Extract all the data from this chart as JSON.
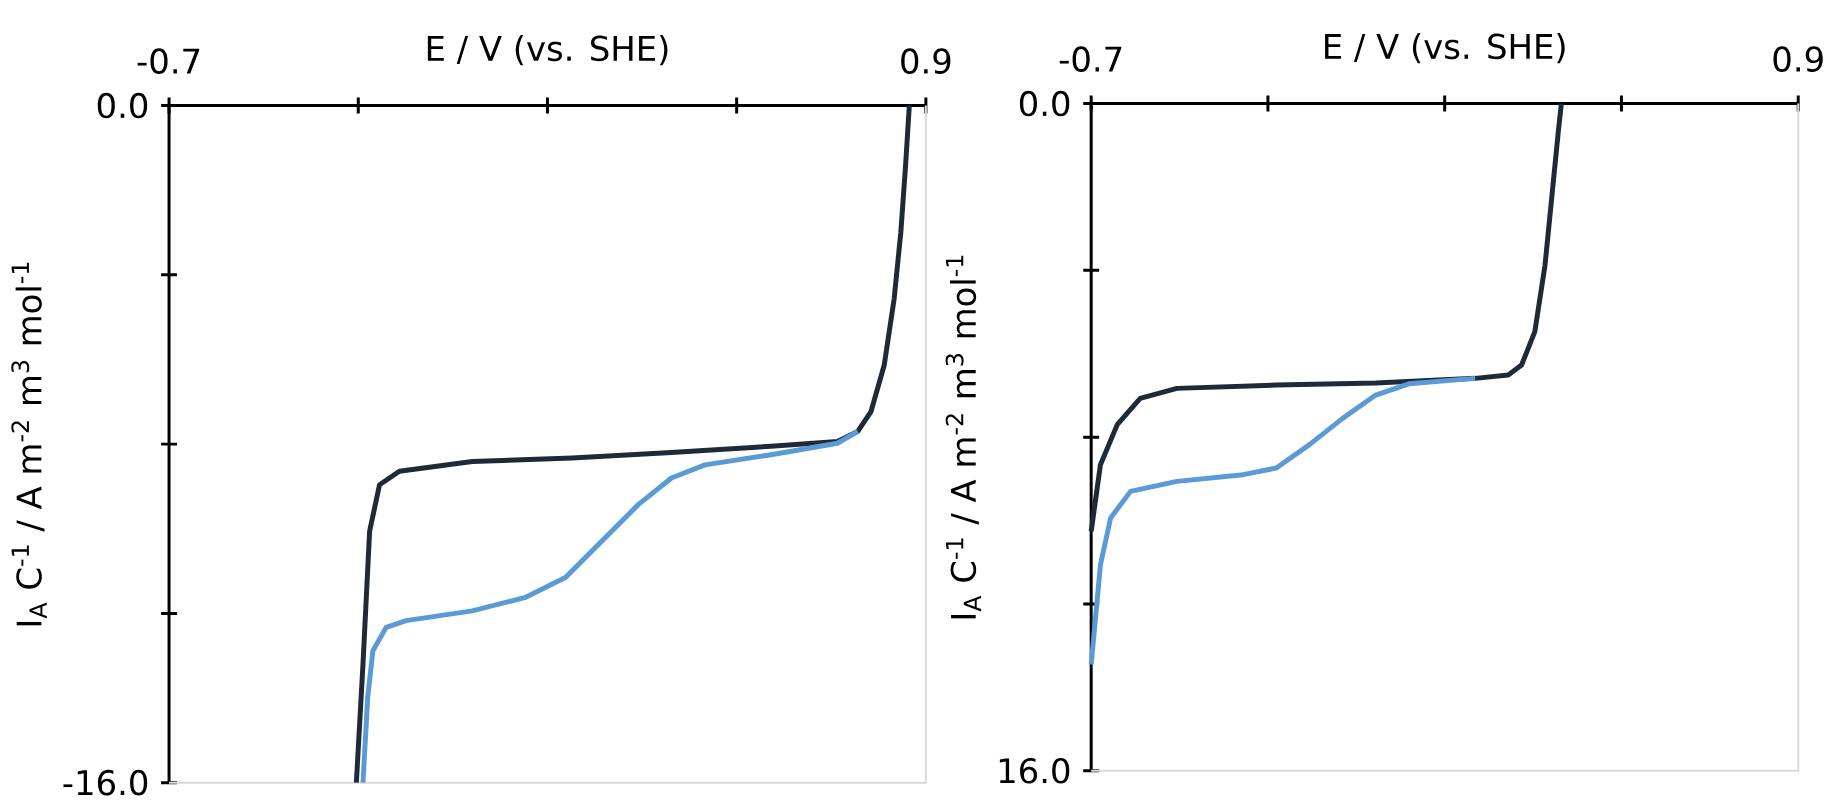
{
  "chart_data": [
    {
      "type": "line",
      "xlabel": "E / V (vs. SHE)",
      "ylabel": "I$_{A}$ C$^{-1}$ / A m$^{-2}$ m$^{3}$ mol$^{-1}$",
      "xlim": [
        -0.7,
        0.9
      ],
      "ylim": [
        -16,
        0
      ],
      "xticks": [
        {
          "value": -0.7,
          "label": "-0.7"
        },
        {
          "value": -0.3,
          "label": null
        },
        {
          "value": 0.1,
          "label": null
        },
        {
          "value": 0.5,
          "label": null
        },
        {
          "value": 0.9,
          "label": "0.9"
        }
      ],
      "yticks": [
        {
          "value": 0,
          "label": "0.0"
        },
        {
          "value": -4,
          "label": null
        },
        {
          "value": -8,
          "label": null
        },
        {
          "value": -12,
          "label": null
        },
        {
          "value": -16,
          "label": "-16.0"
        }
      ],
      "series": [
        {
          "color": "#1f2a38",
          "x": [
            -0.304,
            -0.29,
            -0.276,
            -0.255,
            -0.213,
            -0.059,
            0.152,
            0.362,
            0.573,
            0.713,
            0.756,
            0.784,
            0.812,
            0.833,
            0.847,
            0.857,
            0.865
          ],
          "values": [
            -16.0,
            -13.2,
            -10.06,
            -8.96,
            -8.64,
            -8.41,
            -8.33,
            -8.2,
            -8.05,
            -7.94,
            -7.7,
            -7.23,
            -6.13,
            -4.56,
            -3.0,
            -1.43,
            0
          ]
        },
        {
          "color": "#5b9bd5",
          "x": [
            -0.29,
            -0.28,
            -0.269,
            -0.241,
            -0.199,
            -0.059,
            0.054,
            0.138,
            0.222,
            0.292,
            0.362,
            0.433,
            0.573,
            0.713,
            0.756
          ],
          "values": [
            -16.0,
            -13.98,
            -12.88,
            -12.33,
            -12.17,
            -11.94,
            -11.62,
            -11.15,
            -10.21,
            -9.43,
            -8.8,
            -8.49,
            -8.25,
            -7.98,
            -7.7
          ]
        }
      ]
    },
    {
      "type": "line",
      "xlabel": "E / V (vs. SHE)",
      "ylabel": "I$_{A}$ C$^{-1}$ / A m$^{-2}$ m$^{3}$ mol$^{-1}$",
      "xlim": [
        -0.7,
        0.9
      ],
      "ylim": [
        16,
        0
      ],
      "xticks": [
        {
          "value": -0.7,
          "label": "-0.7"
        },
        {
          "value": -0.3,
          "label": null
        },
        {
          "value": 0.1,
          "label": null
        },
        {
          "value": 0.5,
          "label": null
        },
        {
          "value": 0.9,
          "label": "0.9"
        }
      ],
      "yticks": [
        {
          "value": 0,
          "label": "0.0"
        },
        {
          "value": 4,
          "label": null
        },
        {
          "value": 8,
          "label": null
        },
        {
          "value": 12,
          "label": null
        },
        {
          "value": 16,
          "label": "16.0"
        }
      ],
      "series": [
        {
          "color": "#1f2a38",
          "x": [
            -0.7,
            -0.679,
            -0.641,
            -0.589,
            -0.506,
            -0.281,
            -0.056,
            0.169,
            0.244,
            0.274,
            0.304,
            0.327,
            0.342,
            0.357,
            0.364
          ],
          "values": [
            10.26,
            8.66,
            7.7,
            7.07,
            6.83,
            6.75,
            6.7,
            6.59,
            6.51,
            6.27,
            5.47,
            3.88,
            2.28,
            0.69,
            0
          ]
        },
        {
          "color": "#5b9bd5",
          "x": [
            -0.7,
            -0.679,
            -0.656,
            -0.611,
            -0.506,
            -0.356,
            -0.281,
            -0.206,
            -0.131,
            -0.056,
            0.019,
            0.169
          ],
          "values": [
            13.45,
            11.06,
            9.94,
            9.3,
            9.06,
            8.9,
            8.74,
            8.18,
            7.55,
            6.99,
            6.72,
            6.59
          ]
        }
      ]
    }
  ]
}
